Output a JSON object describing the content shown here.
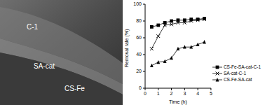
{
  "chart_data": {
    "type": "line",
    "x_label": "Time (h)",
    "y_label": "Removal rate (%)",
    "x": [
      0.5,
      1,
      1.5,
      2,
      2.5,
      3,
      3.5,
      4,
      4.5
    ],
    "xlim": [
      0,
      5
    ],
    "xticks": [
      0,
      1,
      2,
      3,
      4,
      5
    ],
    "ylim": [
      0,
      100
    ],
    "yticks": [
      0,
      20,
      40,
      60,
      80,
      100
    ],
    "grid": false,
    "legend": "lower right",
    "series": [
      {
        "name": "CS-Fe-SA-cat-C-1",
        "color": "#000000",
        "marker": "square",
        "line_style": "solid",
        "values": [
          73,
          75,
          78,
          80,
          81,
          81,
          82,
          82,
          83
        ]
      },
      {
        "name": "SA-cat-C-1",
        "color": "#000000",
        "marker": "x",
        "line_style": "solid",
        "values": [
          47,
          62,
          75,
          76,
          78,
          78,
          80,
          81,
          82
        ]
      },
      {
        "name": "CS-Fe-SA-cat",
        "color": "#000000",
        "marker": "triangle",
        "line_style": "solid",
        "values": [
          27,
          31,
          32,
          36,
          47,
          49,
          49,
          52,
          55
        ]
      }
    ]
  },
  "micrograph": {
    "labels": [
      "C-1",
      "SA-cat",
      "CS-Fe"
    ]
  }
}
